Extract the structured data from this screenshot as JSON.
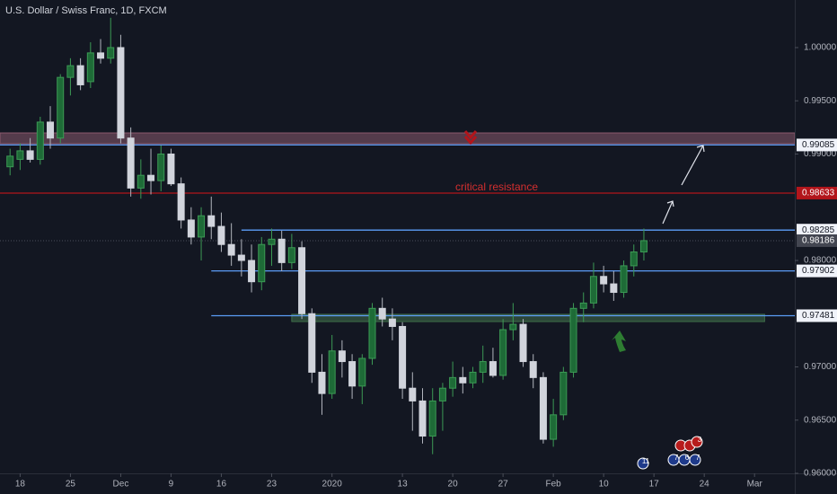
{
  "chart_data": {
    "type": "candlestick",
    "title": "U.S. Dollar / Swiss Franc, 1D, FXCM",
    "x": [
      -1,
      0,
      1,
      2,
      3,
      4,
      5,
      6,
      7,
      8,
      9,
      10,
      11,
      12,
      13,
      14,
      15,
      16,
      17,
      18,
      19,
      20,
      21,
      22,
      23,
      24,
      25,
      26,
      27,
      28,
      29,
      30,
      31,
      32,
      33,
      34,
      35,
      36,
      37,
      38,
      39,
      40,
      41,
      42,
      43,
      44,
      45,
      46,
      47,
      48,
      49,
      50,
      51,
      52,
      53,
      54,
      55,
      56,
      57,
      58,
      59,
      60,
      61,
      62
    ],
    "open": [
      0.9888,
      0.9895,
      0.9903,
      0.9895,
      0.993,
      0.9915,
      0.9972,
      0.9983,
      0.9968,
      0.9995,
      0.999,
      1.0,
      0.9915,
      0.9868,
      0.988,
      0.9875,
      0.99,
      0.9872,
      0.9838,
      0.9822,
      0.9842,
      0.9832,
      0.9815,
      0.9805,
      0.98,
      0.978,
      0.9815,
      0.982,
      0.9798,
      0.9812,
      0.975,
      0.9695,
      0.9675,
      0.9715,
      0.9705,
      0.9682,
      0.9708,
      0.9755,
      0.9745,
      0.9738,
      0.968,
      0.9668,
      0.9635,
      0.9668,
      0.968,
      0.969,
      0.9685,
      0.9695,
      0.9705,
      0.9692,
      0.9735,
      0.974,
      0.9705,
      0.969,
      0.9632,
      0.9655,
      0.9695,
      0.9755,
      0.976,
      0.9785,
      0.9778,
      0.977,
      0.9795,
      0.9808
    ],
    "high": [
      0.9905,
      0.991,
      0.9915,
      0.9935,
      0.9945,
      0.9975,
      0.999,
      0.999,
      1.0005,
      1.0008,
      1.0028,
      1.0012,
      0.9925,
      0.9895,
      0.9905,
      0.9908,
      0.9905,
      0.9878,
      0.985,
      0.985,
      0.986,
      0.9845,
      0.9835,
      0.982,
      0.9815,
      0.9822,
      0.983,
      0.9828,
      0.9825,
      0.9818,
      0.9755,
      0.9712,
      0.973,
      0.9725,
      0.9712,
      0.9712,
      0.976,
      0.9765,
      0.9755,
      0.9742,
      0.9695,
      0.968,
      0.968,
      0.9685,
      0.9705,
      0.97,
      0.97,
      0.972,
      0.9718,
      0.9745,
      0.976,
      0.9745,
      0.9712,
      0.9695,
      0.967,
      0.97,
      0.976,
      0.977,
      0.9798,
      0.9795,
      0.979,
      0.98,
      0.9815,
      0.983
    ],
    "low": [
      0.988,
      0.9885,
      0.9892,
      0.989,
      0.9905,
      0.991,
      0.9955,
      0.996,
      0.9962,
      0.9985,
      0.9985,
      0.991,
      0.986,
      0.9858,
      0.9862,
      0.9865,
      0.987,
      0.983,
      0.9815,
      0.98,
      0.982,
      0.9808,
      0.9795,
      0.9785,
      0.977,
      0.9772,
      0.9795,
      0.979,
      0.9792,
      0.9745,
      0.9685,
      0.9655,
      0.967,
      0.969,
      0.967,
      0.9665,
      0.9702,
      0.9738,
      0.9725,
      0.967,
      0.964,
      0.9628,
      0.9618,
      0.964,
      0.9672,
      0.9675,
      0.968,
      0.9685,
      0.969,
      0.9688,
      0.9725,
      0.97,
      0.968,
      0.9628,
      0.9625,
      0.965,
      0.969,
      0.9742,
      0.9755,
      0.977,
      0.9762,
      0.9765,
      0.9785,
      0.98
    ],
    "close": [
      0.9898,
      0.9903,
      0.9895,
      0.993,
      0.9915,
      0.9972,
      0.9983,
      0.9965,
      0.9995,
      0.999,
      1.0,
      0.9915,
      0.9868,
      0.988,
      0.9875,
      0.99,
      0.9872,
      0.9838,
      0.9822,
      0.9842,
      0.9832,
      0.9815,
      0.9805,
      0.98,
      0.978,
      0.9815,
      0.982,
      0.9798,
      0.9812,
      0.975,
      0.9695,
      0.9675,
      0.9715,
      0.9705,
      0.9682,
      0.9708,
      0.9755,
      0.9745,
      0.9738,
      0.968,
      0.9668,
      0.9635,
      0.9668,
      0.968,
      0.969,
      0.9685,
      0.9695,
      0.9705,
      0.9692,
      0.9735,
      0.974,
      0.9705,
      0.969,
      0.9632,
      0.9655,
      0.9695,
      0.9755,
      0.976,
      0.9785,
      0.9778,
      0.977,
      0.9795,
      0.9808,
      0.98186
    ],
    "up_color": "#1e6b37",
    "down_color": "#d1d4dc",
    "xlim": [
      -2,
      77
    ],
    "ylim": [
      0.96,
      1.00447
    ],
    "xticks": [
      {
        "value": 0,
        "label": "18"
      },
      {
        "value": 5,
        "label": "25"
      },
      {
        "value": 10,
        "label": "Dec"
      },
      {
        "value": 15,
        "label": "9"
      },
      {
        "value": 20,
        "label": "16"
      },
      {
        "value": 25,
        "label": "23"
      },
      {
        "value": 31,
        "label": "2020"
      },
      {
        "value": 38,
        "label": "13"
      },
      {
        "value": 43,
        "label": "20"
      },
      {
        "value": 48,
        "label": "27"
      },
      {
        "value": 53,
        "label": "Feb"
      },
      {
        "value": 58,
        "label": "10"
      },
      {
        "value": 63,
        "label": "17"
      },
      {
        "value": 68,
        "label": "24"
      },
      {
        "value": 73,
        "label": "Mar"
      }
    ],
    "yticks": [
      {
        "value": 0.96,
        "label": "0.96000"
      },
      {
        "value": 0.965,
        "label": "0.96500"
      },
      {
        "value": 0.97,
        "label": "0.97000"
      },
      {
        "value": 0.98,
        "label": "0.98000"
      },
      {
        "value": 0.99,
        "label": "0.99000"
      },
      {
        "value": 0.995,
        "label": "0.99500"
      },
      {
        "value": 1.0,
        "label": "1.00000"
      }
    ],
    "grid": false,
    "levels": [
      {
        "value": 0.99085,
        "color": "#5b9cf6"
      },
      {
        "value": 0.98633,
        "color": "#b2151b"
      },
      {
        "value": 0.98285,
        "color": "#5b9cf6",
        "start": 22
      },
      {
        "value": 0.97902,
        "color": "#5b9cf6",
        "start": 19
      },
      {
        "value": 0.97481,
        "color": "#5b9cf6",
        "start": 19
      }
    ],
    "last_price": 0.98186,
    "zones": [
      {
        "low": 0.99097,
        "high": 0.99198,
        "color": "#8a5a6e"
      },
      {
        "low": 0.97426,
        "high": 0.97494,
        "color": "#3f6e4a",
        "start": 27,
        "end": 74
      }
    ],
    "annotation": "critical resistance",
    "event_badges": [
      "11",
      "7",
      "6",
      "7",
      "3"
    ]
  }
}
